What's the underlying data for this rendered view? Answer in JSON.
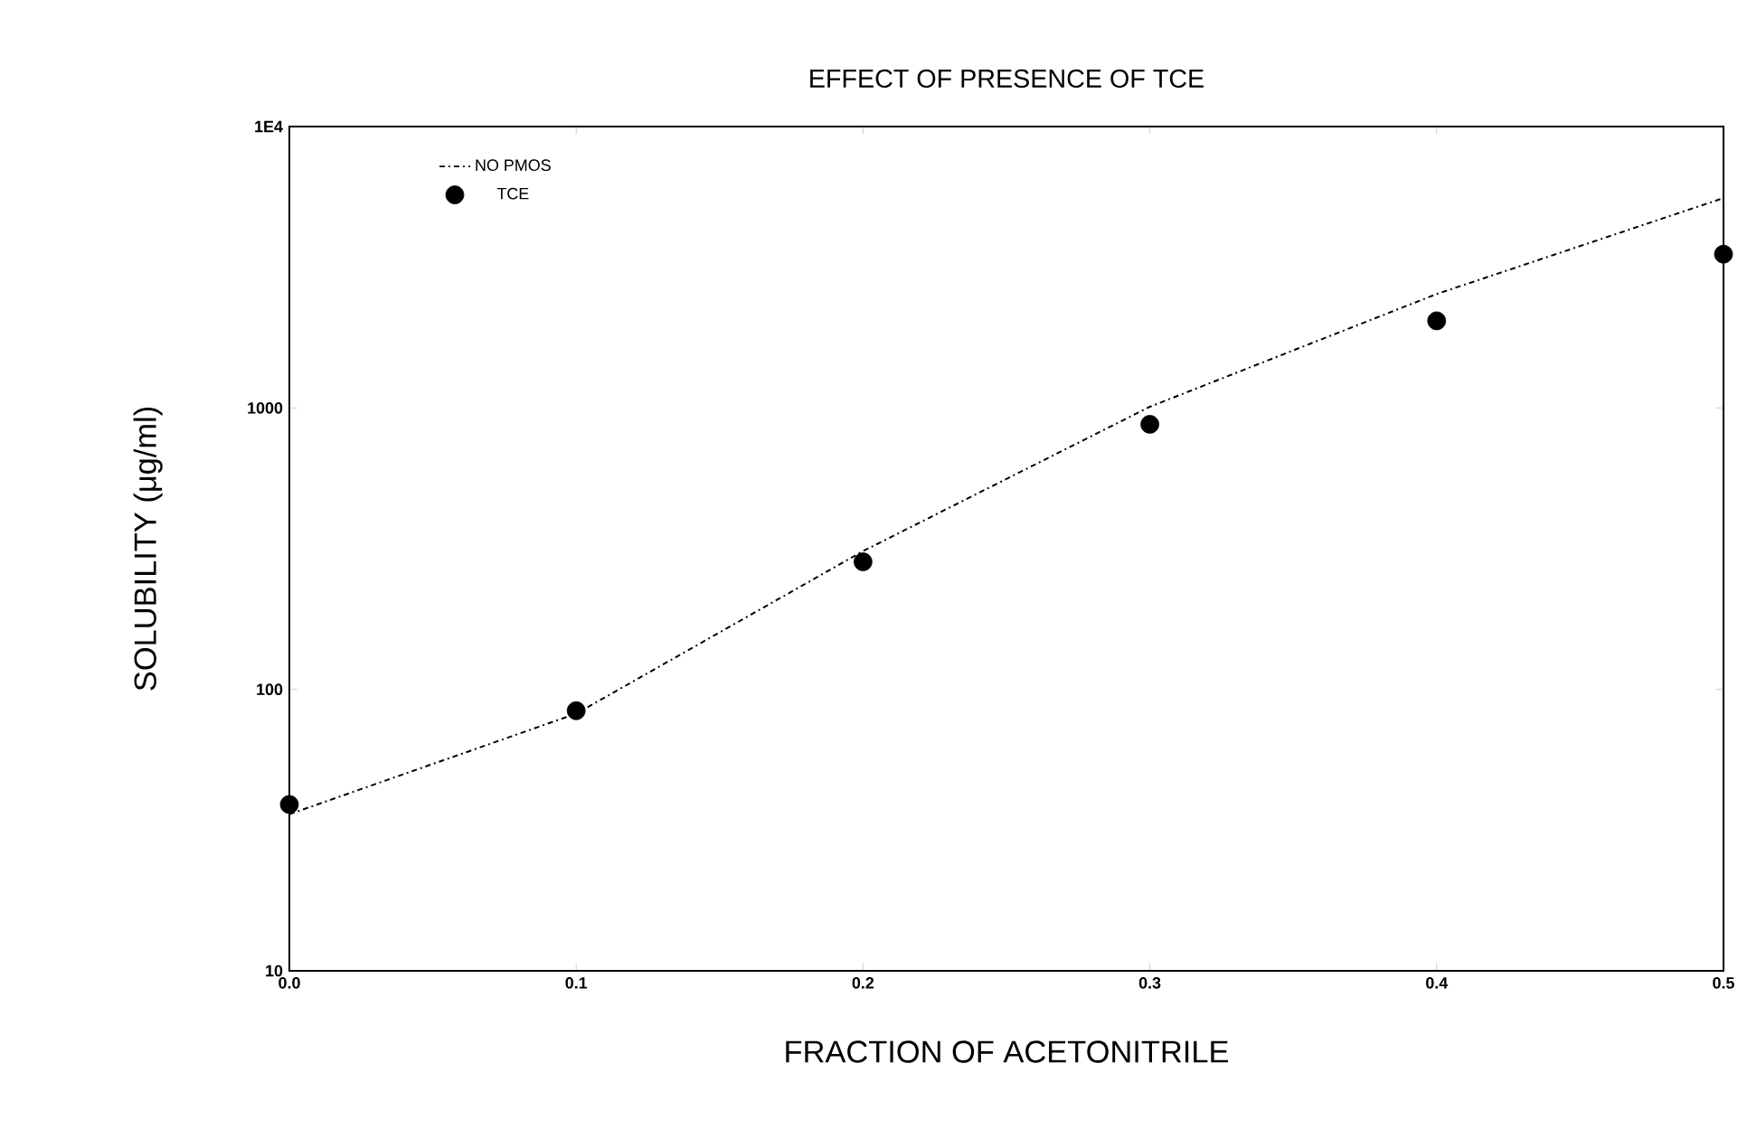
{
  "chart_data": {
    "type": "line",
    "title": "EFFECT OF PRESENCE OF TCE",
    "xlabel": "FRACTION OF ACETONITRILE",
    "ylabel": "SOLUBILITY (μg/ml)",
    "log": "y",
    "xlim": [
      0,
      0.5
    ],
    "ylim": [
      10,
      10000
    ],
    "xticks": [
      {
        "value": 0,
        "label": "0.0"
      },
      0.1,
      0.2,
      0.3,
      0.4,
      0.5
    ],
    "yticks": [
      10,
      100,
      1000,
      {
        "value": 10000,
        "label": "1E4"
      }
    ],
    "grid": false,
    "legend": "top left",
    "series": [
      {
        "name": "NO PMOS",
        "color": "#000000",
        "line_style": "dashed",
        "marker": "none",
        "x": [
          0,
          0.1,
          0.2,
          0.3,
          0.4,
          0.5
        ],
        "values": [
          36,
          82,
          310,
          1010,
          2540,
          5570
        ]
      },
      {
        "name": "TCE",
        "type": "scatter",
        "color": "#000000",
        "marker": "circle",
        "x": [
          0,
          0.1,
          0.2,
          0.3,
          0.4,
          0.5
        ],
        "values": [
          39,
          84,
          284,
          875,
          2040,
          3520
        ]
      }
    ]
  }
}
